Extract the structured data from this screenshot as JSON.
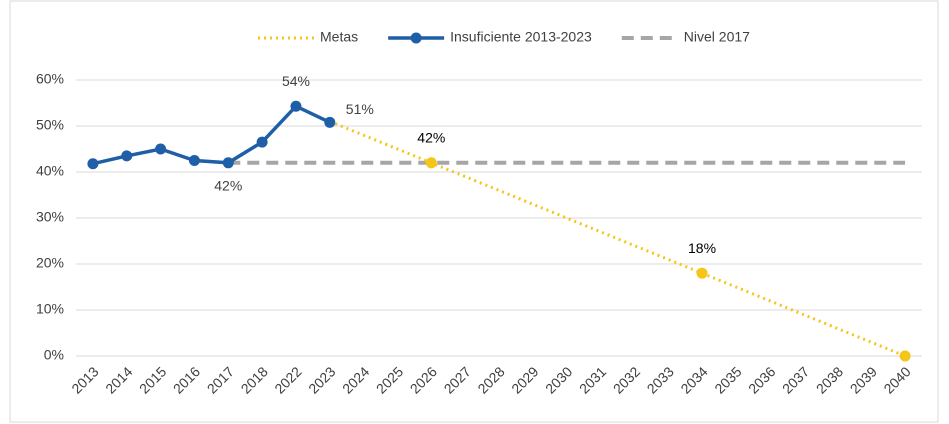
{
  "chart_data": {
    "type": "line",
    "categories": [
      "2013",
      "2014",
      "2015",
      "2016",
      "2017",
      "2018",
      "2022",
      "2023",
      "2024",
      "2025",
      "2026",
      "2027",
      "2028",
      "2029",
      "2030",
      "2031",
      "2032",
      "2033",
      "2034",
      "2035",
      "2036",
      "2037",
      "2038",
      "2039",
      "2040"
    ],
    "series": [
      {
        "name": "Metas",
        "color": "#f5c518",
        "style": "dotted",
        "values": [
          null,
          null,
          null,
          null,
          null,
          null,
          null,
          51,
          48,
          45,
          42,
          39,
          36,
          33,
          30,
          27,
          24,
          21,
          18,
          15,
          12,
          9,
          6,
          3,
          0
        ],
        "value_labels": [
          null,
          null,
          null,
          null,
          null,
          null,
          null,
          null,
          null,
          null,
          "42%",
          null,
          null,
          null,
          null,
          null,
          null,
          null,
          "18%",
          null,
          null,
          null,
          null,
          null,
          null
        ]
      },
      {
        "name": "Insuficiente 2013-2023",
        "color": "#1f5fa8",
        "style": "solid",
        "values": [
          41.8,
          43.5,
          45,
          42.5,
          42,
          46.5,
          54.3,
          50.8,
          null,
          null,
          null,
          null,
          null,
          null,
          null,
          null,
          null,
          null,
          null,
          null,
          null,
          null,
          null,
          null,
          null
        ],
        "value_labels": [
          null,
          null,
          null,
          null,
          "42%",
          null,
          "54%",
          "51%",
          null,
          null,
          null,
          null,
          null,
          null,
          null,
          null,
          null,
          null,
          null,
          null,
          null,
          null,
          null,
          null,
          null
        ]
      },
      {
        "name": "Nivel 2017",
        "color": "#a6a6a6",
        "style": "dashed",
        "values": [
          null,
          null,
          null,
          null,
          42,
          42,
          42,
          42,
          42,
          42,
          42,
          42,
          42,
          42,
          42,
          42,
          42,
          42,
          42,
          42,
          42,
          42,
          42,
          42,
          42
        ]
      }
    ],
    "ylim": [
      0,
      60
    ],
    "yticks": [
      {
        "value": 0,
        "label": "0%"
      },
      {
        "value": 10,
        "label": "10%"
      },
      {
        "value": 20,
        "label": "20%"
      },
      {
        "value": 30,
        "label": "30%"
      },
      {
        "value": 40,
        "label": "40%"
      },
      {
        "value": 50,
        "label": "50%"
      },
      {
        "value": 60,
        "label": "60%"
      }
    ],
    "grid": true,
    "legend": "top"
  }
}
